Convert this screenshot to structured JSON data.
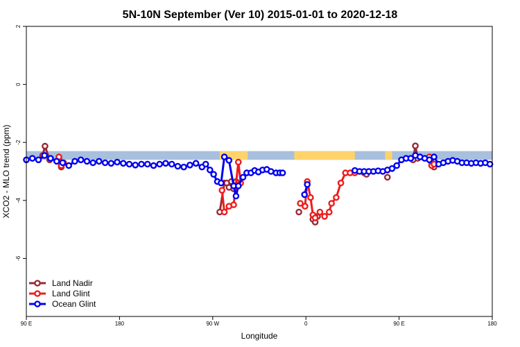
{
  "chart_data": {
    "type": "line",
    "title": "5N-10N September (Ver 10)   2015-01-01 to 2020-12-18",
    "xlabel": "Longitude",
    "ylabel": "XCO2 - MLO trend (ppm)",
    "xlim": [
      0,
      100
    ],
    "ylim": [
      -8,
      2
    ],
    "x_ticks": [
      {
        "pos": 0,
        "label": "90 E"
      },
      {
        "pos": 20,
        "label": "180"
      },
      {
        "pos": 40,
        "label": "90 W"
      },
      {
        "pos": 60,
        "label": "0"
      },
      {
        "pos": 80,
        "label": "90 E"
      },
      {
        "pos": 100,
        "label": "180"
      }
    ],
    "y_ticks": [
      -6,
      -4,
      -2,
      0,
      2
    ],
    "land_mask": {
      "band_y": [
        -2.6,
        -2.3
      ],
      "ocean_color": "#a8c0de",
      "land_color": "#ffd36b",
      "land_segments": [
        [
          41.5,
          47.5
        ],
        [
          57.5,
          70.5
        ],
        [
          77,
          78.5
        ]
      ]
    },
    "legend": {
      "position": "bottom-left"
    },
    "series": [
      {
        "name": "Land Nadir",
        "color": "#992a36",
        "segments": [
          [
            [
              3.5,
              -2.45
            ],
            [
              4,
              -2.13
            ],
            [
              5,
              -2.6
            ]
          ],
          [
            [
              7,
              -2.55
            ],
            [
              7.5,
              -2.85
            ]
          ],
          [
            [
              41.5,
              -4.4
            ],
            [
              42.5,
              -3.4
            ],
            [
              43,
              -3.4
            ],
            [
              43.5,
              -3.55
            ],
            [
              44,
              -3.35
            ],
            [
              44.5,
              -3.6
            ],
            [
              45,
              -3.35
            ]
          ],
          [
            [
              58.5,
              -4.4
            ]
          ],
          [
            [
              61.5,
              -4.65
            ],
            [
              62,
              -4.75
            ],
            [
              62.5,
              -4.55
            ]
          ],
          [
            [
              72.5,
              -3.05
            ],
            [
              73,
              -3.1
            ]
          ],
          [
            [
              77.5,
              -3.2
            ]
          ],
          [
            [
              83,
              -2.6
            ],
            [
              83.5,
              -2.12
            ],
            [
              84,
              -2.55
            ]
          ],
          [
            [
              87,
              -2.7
            ],
            [
              87.5,
              -2.85
            ]
          ]
        ]
      },
      {
        "name": "Land Glint",
        "color": "#ee1c1c",
        "segments": [
          [
            [
              7,
              -2.5
            ],
            [
              7.5,
              -2.8
            ],
            [
              8,
              -2.7
            ]
          ],
          [
            [
              42,
              -3.65
            ],
            [
              42.5,
              -4.4
            ],
            [
              43.5,
              -4.2
            ],
            [
              44.5,
              -4.15
            ],
            [
              45.5,
              -2.68
            ],
            [
              46,
              -3.4
            ]
          ],
          [
            [
              58.8,
              -4.1
            ],
            [
              59.8,
              -4.2
            ],
            [
              60.3,
              -3.35
            ],
            [
              61,
              -3.9
            ],
            [
              61.5,
              -4.5
            ],
            [
              62,
              -4.6
            ],
            [
              63,
              -4.4
            ],
            [
              64,
              -4.55
            ],
            [
              65,
              -4.4
            ],
            [
              65.5,
              -4.1
            ],
            [
              66.5,
              -3.9
            ],
            [
              67.5,
              -3.4
            ],
            [
              68.5,
              -3.05
            ],
            [
              69.5,
              -3.05
            ],
            [
              70.5,
              -3.05
            ]
          ],
          [
            [
              86.5,
              -2.5
            ],
            [
              87,
              -2.8
            ],
            [
              87.5,
              -2.75
            ]
          ]
        ]
      },
      {
        "name": "Ocean Glint",
        "color": "#0000f0",
        "segments": [
          [
            [
              0,
              -2.6
            ],
            [
              1.3,
              -2.55
            ],
            [
              2.6,
              -2.6
            ],
            [
              3.9,
              -2.45
            ],
            [
              5.2,
              -2.55
            ],
            [
              6.5,
              -2.65
            ],
            [
              7.8,
              -2.7
            ],
            [
              9.1,
              -2.8
            ],
            [
              10.4,
              -2.65
            ],
            [
              11.7,
              -2.6
            ],
            [
              13,
              -2.65
            ],
            [
              14.3,
              -2.7
            ],
            [
              15.6,
              -2.65
            ],
            [
              16.9,
              -2.7
            ],
            [
              18.2,
              -2.72
            ],
            [
              19.5,
              -2.68
            ],
            [
              20.8,
              -2.72
            ],
            [
              22.1,
              -2.75
            ],
            [
              23.4,
              -2.78
            ],
            [
              24.7,
              -2.75
            ],
            [
              26,
              -2.75
            ],
            [
              27.3,
              -2.8
            ],
            [
              28.6,
              -2.75
            ],
            [
              29.9,
              -2.72
            ],
            [
              31.2,
              -2.75
            ],
            [
              32.5,
              -2.82
            ],
            [
              33.8,
              -2.85
            ],
            [
              35.1,
              -2.78
            ],
            [
              36.4,
              -2.72
            ],
            [
              37.7,
              -2.85
            ],
            [
              38.5,
              -2.75
            ],
            [
              39.4,
              -2.95
            ],
            [
              40.2,
              -3.1
            ],
            [
              41,
              -3.35
            ],
            [
              41.8,
              -3.4
            ],
            [
              42.5,
              -2.5
            ],
            [
              43.5,
              -2.62
            ],
            [
              44.5,
              -3.5
            ],
            [
              45,
              -3.85
            ],
            [
              45.5,
              -3.5
            ],
            [
              46.5,
              -3.2
            ],
            [
              47.3,
              -3.05
            ],
            [
              48.2,
              -3.05
            ],
            [
              49,
              -2.97
            ],
            [
              49.8,
              -3.02
            ],
            [
              50.7,
              -2.95
            ],
            [
              51.6,
              -2.93
            ],
            [
              52.5,
              -3.0
            ],
            [
              53.6,
              -3.05
            ],
            [
              54.4,
              -3.05
            ],
            [
              55,
              -3.05
            ]
          ],
          [
            [
              59.7,
              -3.8
            ],
            [
              60.3,
              -3.45
            ]
          ],
          [
            [
              70.5,
              -2.97
            ],
            [
              71.5,
              -3.0
            ],
            [
              72.5,
              -3.0
            ],
            [
              73.5,
              -3.0
            ],
            [
              74.5,
              -3.0
            ],
            [
              75.5,
              -2.98
            ],
            [
              76.5,
              -3.0
            ],
            [
              77.5,
              -2.95
            ],
            [
              78.5,
              -2.9
            ],
            [
              79.5,
              -2.8
            ],
            [
              80.5,
              -2.6
            ],
            [
              81.5,
              -2.55
            ],
            [
              82.5,
              -2.55
            ],
            [
              83.5,
              -2.45
            ],
            [
              84.5,
              -2.5
            ],
            [
              85.5,
              -2.55
            ],
            [
              86.5,
              -2.6
            ],
            [
              87.5,
              -2.5
            ],
            [
              88.5,
              -2.75
            ],
            [
              89.5,
              -2.7
            ],
            [
              90.5,
              -2.65
            ],
            [
              91.5,
              -2.62
            ],
            [
              92.5,
              -2.65
            ],
            [
              93.5,
              -2.7
            ],
            [
              94.5,
              -2.7
            ],
            [
              95.5,
              -2.72
            ],
            [
              96.5,
              -2.7
            ],
            [
              97.5,
              -2.72
            ],
            [
              98.5,
              -2.7
            ],
            [
              99.5,
              -2.75
            ]
          ]
        ]
      }
    ]
  }
}
